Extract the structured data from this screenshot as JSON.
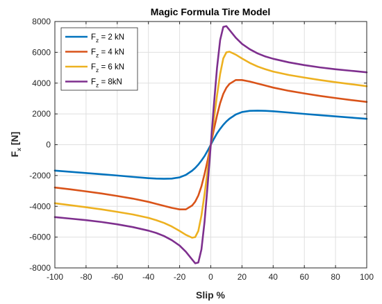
{
  "chart_data": {
    "type": "line",
    "title": "Magic Formula Tire Model",
    "xlabel": "Slip %",
    "ylabel_main": "F",
    "ylabel_sub": "x",
    "ylabel_unit": " [N]",
    "xlim": [
      -100,
      100
    ],
    "ylim": [
      -8000,
      8000
    ],
    "xticks": [
      -100,
      -80,
      -60,
      -40,
      -20,
      0,
      20,
      40,
      60,
      80,
      100
    ],
    "yticks": [
      -8000,
      -6000,
      -4000,
      -2000,
      0,
      2000,
      4000,
      6000,
      8000
    ],
    "grid": true,
    "legend_position": "top-left",
    "x": [
      -100,
      -90,
      -80,
      -70,
      -60,
      -50,
      -40,
      -35,
      -30,
      -25,
      -20,
      -16,
      -12,
      -10,
      -8,
      -6,
      -4,
      -2,
      0,
      2,
      4,
      6,
      8,
      10,
      12,
      16,
      20,
      25,
      30,
      35,
      40,
      50,
      60,
      70,
      80,
      90,
      100
    ],
    "series": [
      {
        "name_main": "F",
        "name_sub": "z",
        "name_rest": " = 2 kN",
        "color": "#0072BD",
        "values": [
          -1680,
          -1760,
          -1840,
          -1920,
          -2000,
          -2090,
          -2170,
          -2200,
          -2210,
          -2200,
          -2120,
          -1960,
          -1690,
          -1510,
          -1290,
          -1030,
          -740,
          -380,
          0,
          380,
          740,
          1030,
          1290,
          1510,
          1690,
          1960,
          2120,
          2200,
          2210,
          2200,
          2170,
          2090,
          2000,
          1920,
          1840,
          1760,
          1680
        ]
      },
      {
        "name_main": "F",
        "name_sub": "z",
        "name_rest": " = 4 kN",
        "color": "#D95319",
        "values": [
          -2780,
          -2900,
          -3030,
          -3170,
          -3330,
          -3500,
          -3710,
          -3840,
          -3970,
          -4100,
          -4200,
          -4200,
          -3950,
          -3700,
          -3300,
          -2700,
          -1900,
          -1000,
          0,
          1000,
          1900,
          2700,
          3300,
          3700,
          3950,
          4200,
          4200,
          4100,
          3970,
          3840,
          3710,
          3500,
          3330,
          3170,
          3030,
          2900,
          2780
        ]
      },
      {
        "name_main": "F",
        "name_sub": "z",
        "name_rest": " = 6 kN",
        "color": "#EDB120",
        "values": [
          -3800,
          -3930,
          -4060,
          -4200,
          -4360,
          -4530,
          -4750,
          -4900,
          -5080,
          -5310,
          -5600,
          -5850,
          -6040,
          -6000,
          -5600,
          -4600,
          -3200,
          -1650,
          0,
          1650,
          3200,
          4600,
          5600,
          6000,
          6040,
          5850,
          5600,
          5310,
          5080,
          4900,
          4750,
          4530,
          4360,
          4200,
          4060,
          3930,
          3800
        ]
      },
      {
        "name_main": "F",
        "name_sub": "z",
        "name_rest": " = 8kN",
        "color": "#7E2F8E",
        "values": [
          -4700,
          -4800,
          -4900,
          -5020,
          -5170,
          -5350,
          -5580,
          -5730,
          -5930,
          -6200,
          -6550,
          -6950,
          -7450,
          -7700,
          -7650,
          -6800,
          -5000,
          -2600,
          0,
          2600,
          5000,
          6800,
          7650,
          7700,
          7450,
          6950,
          6550,
          6200,
          5930,
          5730,
          5580,
          5350,
          5170,
          5020,
          4900,
          4800,
          4700
        ]
      }
    ]
  }
}
